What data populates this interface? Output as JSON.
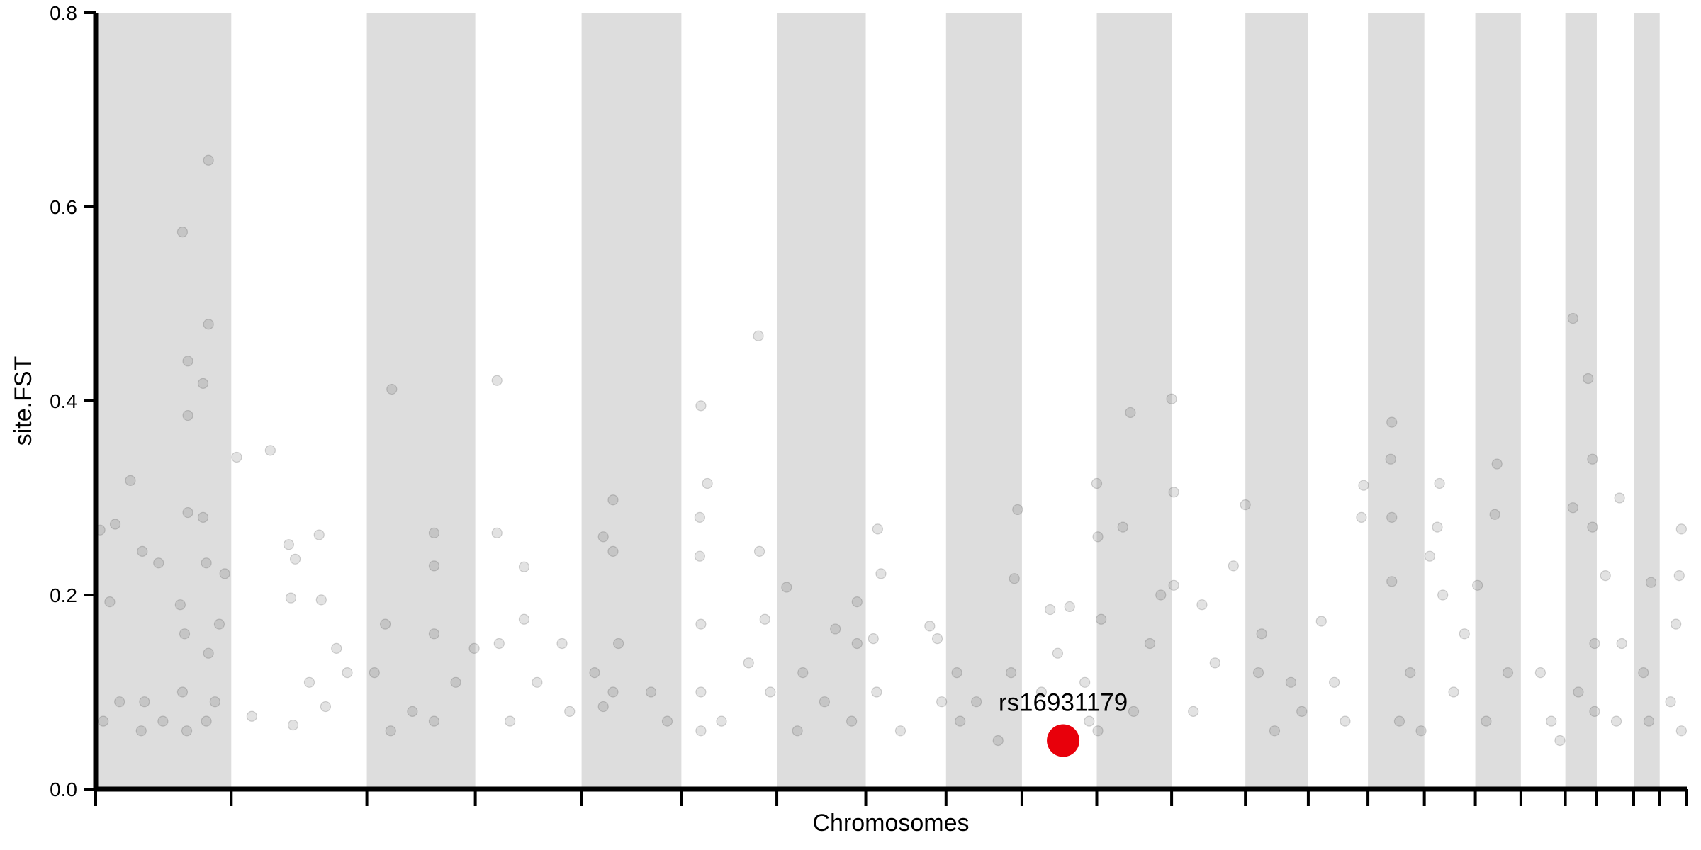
{
  "chart_data": {
    "type": "scatter",
    "xlabel": "Chromosomes",
    "ylabel": "site.FST",
    "xlim": [
      0,
      1467
    ],
    "xticks": [
      0,
      125,
      250,
      350,
      448,
      540,
      628,
      710,
      784,
      854,
      923,
      992,
      1060,
      1118,
      1173,
      1225,
      1272,
      1314,
      1355,
      1384,
      1418,
      1442,
      1467
    ],
    "ylim": [
      0,
      0.8
    ],
    "yticks": [
      {
        "value": 0,
        "label": "0.0"
      },
      0.2,
      0.4,
      0.6,
      0.8
    ],
    "band_color": "#dddddd",
    "color": "#555555",
    "x": [
      80,
      104,
      104,
      85,
      99,
      85,
      32,
      18,
      4,
      85,
      99,
      43,
      58,
      13,
      78,
      119,
      102,
      7,
      22,
      42,
      45,
      62,
      80,
      84,
      102,
      104,
      110,
      82,
      114,
      130,
      161,
      178,
      180,
      184,
      206,
      208,
      222,
      182,
      212,
      144,
      232,
      197,
      273,
      312,
      312,
      267,
      312,
      257,
      292,
      332,
      349,
      272,
      312,
      370,
      370,
      395,
      395,
      372,
      382,
      407,
      430,
      437,
      477,
      468,
      477,
      460,
      468,
      477,
      482,
      512,
      527,
      558,
      564,
      557,
      557,
      558,
      558,
      558,
      611,
      612,
      617,
      602,
      577,
      622,
      637,
      652,
      672,
      702,
      682,
      702,
      647,
      697,
      721,
      724,
      717,
      720,
      742,
      769,
      776,
      780,
      794,
      797,
      847,
      844,
      850,
      832,
      812,
      880,
      898,
      887,
      872,
      912,
      916,
      923,
      954,
      947,
      924,
      927,
      924,
      972,
      982,
      957,
      992,
      994,
      994,
      1020,
      1032,
      1012,
      1049,
      1060,
      1075,
      1072,
      1102,
      1087,
      1112,
      1130,
      1152,
      1167,
      1169,
      1142,
      1195,
      1194,
      1195,
      1195,
      1212,
      1202,
      1222,
      1239,
      1237,
      1230,
      1242,
      1252,
      1262,
      1292,
      1290,
      1274,
      1302,
      1282,
      1332,
      1342,
      1350,
      1362,
      1376,
      1380,
      1380,
      1362,
      1382,
      1382,
      1367,
      1405,
      1392,
      1407,
      1402,
      1434,
      1427,
      1432,
      1462,
      1460,
      1457,
      1452,
      1462
    ],
    "values": [
      0.574,
      0.648,
      0.479,
      0.441,
      0.418,
      0.385,
      0.318,
      0.273,
      0.267,
      0.285,
      0.28,
      0.245,
      0.233,
      0.193,
      0.19,
      0.222,
      0.233,
      0.07,
      0.09,
      0.06,
      0.09,
      0.07,
      0.1,
      0.06,
      0.07,
      0.14,
      0.09,
      0.16,
      0.17,
      0.342,
      0.349,
      0.252,
      0.197,
      0.237,
      0.262,
      0.195,
      0.145,
      0.066,
      0.085,
      0.075,
      0.12,
      0.11,
      0.412,
      0.264,
      0.23,
      0.17,
      0.16,
      0.12,
      0.08,
      0.11,
      0.145,
      0.06,
      0.07,
      0.421,
      0.264,
      0.229,
      0.175,
      0.15,
      0.07,
      0.11,
      0.15,
      0.08,
      0.298,
      0.26,
      0.245,
      0.12,
      0.085,
      0.1,
      0.15,
      0.1,
      0.07,
      0.395,
      0.315,
      0.28,
      0.24,
      0.17,
      0.1,
      0.06,
      0.467,
      0.245,
      0.175,
      0.13,
      0.07,
      0.1,
      0.208,
      0.12,
      0.09,
      0.193,
      0.165,
      0.15,
      0.06,
      0.07,
      0.268,
      0.222,
      0.155,
      0.1,
      0.06,
      0.168,
      0.155,
      0.09,
      0.12,
      0.07,
      0.217,
      0.12,
      0.288,
      0.05,
      0.09,
      0.185,
      0.188,
      0.14,
      0.1,
      0.11,
      0.07,
      0.315,
      0.388,
      0.27,
      0.26,
      0.175,
      0.06,
      0.15,
      0.2,
      0.08,
      0.402,
      0.306,
      0.21,
      0.19,
      0.13,
      0.08,
      0.23,
      0.293,
      0.16,
      0.12,
      0.11,
      0.06,
      0.08,
      0.173,
      0.07,
      0.28,
      0.313,
      0.11,
      0.378,
      0.34,
      0.28,
      0.214,
      0.12,
      0.07,
      0.06,
      0.315,
      0.27,
      0.24,
      0.2,
      0.1,
      0.16,
      0.335,
      0.283,
      0.21,
      0.12,
      0.07,
      0.12,
      0.07,
      0.05,
      0.485,
      0.423,
      0.34,
      0.27,
      0.29,
      0.15,
      0.08,
      0.1,
      0.3,
      0.22,
      0.15,
      0.07,
      0.213,
      0.12,
      0.07,
      0.268,
      0.22,
      0.17,
      0.09,
      0.06
    ],
    "highlight": {
      "text": "rs16931179",
      "x": 892,
      "y": 0.05,
      "color": "#e8000b"
    }
  }
}
